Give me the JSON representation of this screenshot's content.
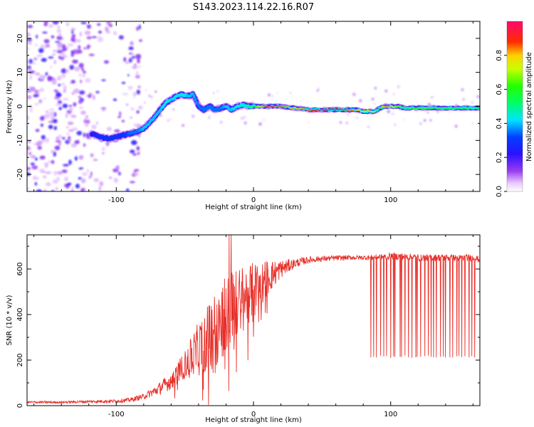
{
  "figure": {
    "title": "S143.2023.114.22.16.R07"
  },
  "chart_data": [
    {
      "type": "heatmap",
      "xlabel": "Height of straight line (km)",
      "ylabel": "Frequency (Hz)",
      "xlim": [
        -165,
        165
      ],
      "ylim": [
        -25,
        25
      ],
      "xticks": [
        -100,
        0,
        100
      ],
      "yticks": [
        -20,
        -10,
        0,
        10,
        20
      ],
      "colorbar": {
        "label": "Normalized spectral amplitude",
        "range": [
          0,
          1
        ],
        "ticks": [
          0.0,
          0.2,
          0.4,
          0.6,
          0.8
        ],
        "colormap": "hsv-like (white, violet, blue, cyan, green, yellow, red, magenta)"
      },
      "ridge": {
        "x": [
          -118,
          -112,
          -105,
          -100,
          -95,
          -90,
          -85,
          -80,
          -76,
          -72,
          -68,
          -64,
          -60,
          -56,
          -52,
          -48,
          -44,
          -40,
          -36,
          -32,
          -28,
          -24,
          -20,
          -16,
          -12,
          -8,
          -4,
          0,
          10,
          20,
          30,
          40,
          50,
          60,
          70,
          76,
          80,
          85,
          88,
          92,
          96,
          100,
          105,
          110,
          120,
          130,
          140,
          150,
          160,
          165
        ],
        "freq": [
          -8,
          -9,
          -9.5,
          -9,
          -8.5,
          -8,
          -7.5,
          -6.5,
          -5,
          -3,
          -1,
          1,
          2,
          3,
          3.5,
          3,
          3.5,
          0,
          -1,
          0,
          -1,
          -0.5,
          0,
          -1,
          0,
          0.5,
          0,
          0,
          0,
          0,
          -0.5,
          -1,
          -1,
          -1,
          -1,
          -1,
          -1.5,
          -1.5,
          -1.5,
          -0.5,
          0,
          0,
          0,
          -0.5,
          -0.5,
          -0.5,
          -0.5,
          -0.5,
          -0.5,
          -0.5
        ],
        "amplitude": [
          0.25,
          0.3,
          0.3,
          0.3,
          0.3,
          0.35,
          0.35,
          0.4,
          0.4,
          0.4,
          0.4,
          0.45,
          0.4,
          0.45,
          0.45,
          0.4,
          0.4,
          0.35,
          0.35,
          0.35,
          0.35,
          0.35,
          0.4,
          0.4,
          0.45,
          0.45,
          0.5,
          0.55,
          0.95,
          0.85,
          0.8,
          0.85,
          0.95,
          0.9,
          0.85,
          0.8,
          0.7,
          0.75,
          0.7,
          0.6,
          0.85,
          0.8,
          0.65,
          0.6,
          0.6,
          0.6,
          0.55,
          0.55,
          0.55,
          0.55
        ]
      },
      "noise_region": {
        "x_range": [
          -165,
          -90
        ],
        "amplitude_range": [
          0.05,
          0.25
        ]
      }
    },
    {
      "type": "line",
      "xlabel": "Height of straight line (km)",
      "ylabel": "SNR (10 * v/v)",
      "xlim": [
        -165,
        165
      ],
      "ylim": [
        0,
        750
      ],
      "xticks": [
        -100,
        0,
        100
      ],
      "yticks": [
        0,
        200,
        400,
        600
      ],
      "color": "#e8302a",
      "x": [
        -165,
        -140,
        -120,
        -100,
        -90,
        -80,
        -70,
        -60,
        -50,
        -40,
        -30,
        -20,
        -10,
        0,
        10,
        20,
        30,
        40,
        50,
        60,
        70,
        80,
        90,
        100,
        110,
        120,
        130,
        140,
        150,
        160,
        165
      ],
      "y": [
        15,
        15,
        18,
        20,
        25,
        40,
        70,
        110,
        180,
        250,
        320,
        400,
        460,
        510,
        560,
        600,
        625,
        640,
        645,
        648,
        650,
        650,
        652,
        655,
        655,
        650,
        650,
        650,
        648,
        650,
        640
      ],
      "noise_amp": [
        5,
        5,
        6,
        8,
        10,
        12,
        25,
        40,
        60,
        120,
        160,
        180,
        150,
        120,
        80,
        40,
        20,
        15,
        12,
        12,
        10,
        10,
        12,
        15,
        15,
        15,
        15,
        15,
        15,
        15,
        15
      ],
      "dropouts": {
        "x_range": [
          85,
          163
        ],
        "count": 34,
        "y_min": 210
      }
    }
  ]
}
